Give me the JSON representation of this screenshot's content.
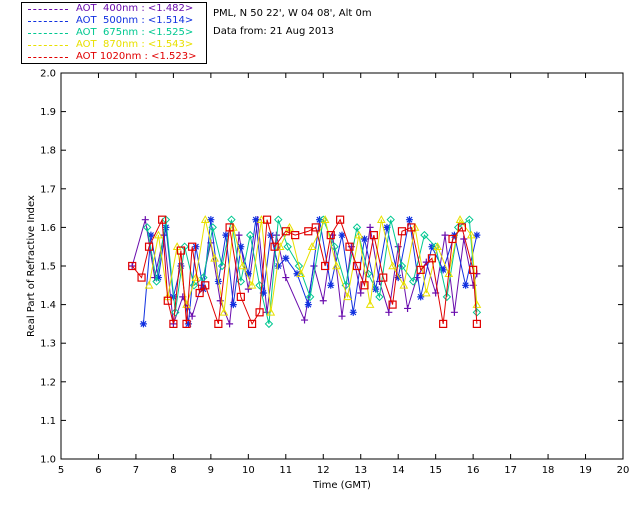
{
  "header": {
    "site": "PML, N 50 22', W 04 08', Alt 0m",
    "date": "Data from: 21 Aug 2013"
  },
  "chart_data": {
    "type": "scatter",
    "title": "",
    "xlabel": "Time (GMT)",
    "ylabel": "Real Part of Refractive Index",
    "xlim": [
      5,
      20
    ],
    "ylim": [
      1.0,
      2.0
    ],
    "xticks": [
      "5",
      "6",
      "7",
      "8",
      "9",
      "10",
      "11",
      "12",
      "13",
      "14",
      "15",
      "16",
      "17",
      "18",
      "19",
      "20"
    ],
    "yticks": [
      "1.0",
      "1.1",
      "1.2",
      "1.3",
      "1.4",
      "1.5",
      "1.6",
      "1.7",
      "1.8",
      "1.9",
      "2.0"
    ],
    "grid": false,
    "legend_position": "top-left",
    "series": [
      {
        "name": "AOT  400nm : <1.482>",
        "color": "#6a0dad",
        "marker": "plus",
        "x": [
          6.9,
          7.25,
          7.5,
          7.75,
          8.0,
          8.25,
          8.5,
          8.75,
          9.0,
          9.25,
          9.5,
          9.75,
          10.0,
          10.25,
          10.5,
          10.75,
          11.0,
          11.5,
          11.75,
          12.0,
          12.25,
          12.5,
          12.75,
          13.0,
          13.25,
          13.5,
          13.75,
          14.0,
          14.25,
          14.5,
          14.75,
          15.0,
          15.25,
          15.5,
          15.75,
          16.0,
          16.1
        ],
        "y": [
          1.5,
          1.62,
          1.47,
          1.58,
          1.35,
          1.42,
          1.37,
          1.45,
          1.56,
          1.41,
          1.35,
          1.58,
          1.44,
          1.62,
          1.38,
          1.58,
          1.47,
          1.36,
          1.5,
          1.41,
          1.58,
          1.37,
          1.55,
          1.43,
          1.6,
          1.46,
          1.38,
          1.55,
          1.39,
          1.47,
          1.51,
          1.43,
          1.58,
          1.38,
          1.57,
          1.45,
          1.48
        ]
      },
      {
        "name": "AOT  500nm : <1.514>",
        "color": "#1030e0",
        "marker": "star",
        "x": [
          7.2,
          7.4,
          7.6,
          7.8,
          8.0,
          8.2,
          8.4,
          8.6,
          8.8,
          9.0,
          9.2,
          9.4,
          9.6,
          9.8,
          10.0,
          10.2,
          10.4,
          10.6,
          10.8,
          11.0,
          11.3,
          11.6,
          11.9,
          12.2,
          12.5,
          12.8,
          13.1,
          13.4,
          13.7,
          14.0,
          14.3,
          14.6,
          14.9,
          15.2,
          15.5,
          15.8,
          16.1
        ],
        "y": [
          1.35,
          1.58,
          1.47,
          1.6,
          1.42,
          1.5,
          1.35,
          1.55,
          1.44,
          1.62,
          1.46,
          1.58,
          1.4,
          1.55,
          1.48,
          1.62,
          1.43,
          1.58,
          1.5,
          1.52,
          1.48,
          1.4,
          1.62,
          1.45,
          1.58,
          1.38,
          1.57,
          1.44,
          1.6,
          1.47,
          1.62,
          1.42,
          1.55,
          1.49,
          1.58,
          1.45,
          1.58
        ]
      },
      {
        "name": "AOT  675nm : <1.525>",
        "color": "#00c890",
        "marker": "diamond",
        "x": [
          7.3,
          7.55,
          7.8,
          8.05,
          8.3,
          8.55,
          8.8,
          9.05,
          9.3,
          9.55,
          9.8,
          10.05,
          10.3,
          10.55,
          10.8,
          11.05,
          11.35,
          11.65,
          12.0,
          12.3,
          12.6,
          12.9,
          13.2,
          13.5,
          13.8,
          14.1,
          14.4,
          14.7,
          15.0,
          15.3,
          15.6,
          15.9,
          16.1
        ],
        "y": [
          1.6,
          1.46,
          1.62,
          1.38,
          1.55,
          1.45,
          1.47,
          1.6,
          1.5,
          1.62,
          1.46,
          1.58,
          1.45,
          1.35,
          1.62,
          1.55,
          1.5,
          1.42,
          1.62,
          1.55,
          1.45,
          1.6,
          1.48,
          1.42,
          1.62,
          1.5,
          1.46,
          1.58,
          1.55,
          1.42,
          1.6,
          1.62,
          1.38
        ]
      },
      {
        "name": "AOT  870nm : <1.543>",
        "color": "#e8e000",
        "marker": "triangle",
        "x": [
          7.35,
          7.6,
          7.85,
          8.1,
          8.35,
          8.6,
          8.85,
          9.1,
          9.35,
          9.6,
          9.85,
          10.1,
          10.35,
          10.6,
          10.85,
          11.1,
          11.4,
          11.7,
          12.05,
          12.35,
          12.65,
          12.95,
          13.25,
          13.55,
          13.85,
          14.15,
          14.45,
          14.75,
          15.05,
          15.35,
          15.65,
          15.95,
          16.1
        ],
        "y": [
          1.45,
          1.58,
          1.42,
          1.55,
          1.4,
          1.47,
          1.62,
          1.52,
          1.38,
          1.6,
          1.5,
          1.45,
          1.62,
          1.38,
          1.55,
          1.6,
          1.48,
          1.55,
          1.62,
          1.5,
          1.42,
          1.58,
          1.4,
          1.62,
          1.5,
          1.45,
          1.6,
          1.43,
          1.55,
          1.48,
          1.62,
          1.58,
          1.4
        ]
      },
      {
        "name": "AOT 1020nm : <1.523>",
        "color": "#e00000",
        "marker": "square",
        "x": [
          6.9,
          7.15,
          7.35,
          7.7,
          7.85,
          8.0,
          8.2,
          8.35,
          8.5,
          8.7,
          8.85,
          9.2,
          9.5,
          9.8,
          10.1,
          10.3,
          10.5,
          10.7,
          11.0,
          11.25,
          11.6,
          11.8,
          12.05,
          12.2,
          12.45,
          12.7,
          12.9,
          13.1,
          13.35,
          13.6,
          13.85,
          14.1,
          14.35,
          14.6,
          14.9,
          15.2,
          15.45,
          15.7,
          16.0,
          16.1
        ],
        "y": [
          1.5,
          1.47,
          1.55,
          1.62,
          1.41,
          1.35,
          1.54,
          1.35,
          1.55,
          1.43,
          1.45,
          1.35,
          1.6,
          1.42,
          1.35,
          1.38,
          1.62,
          1.55,
          1.59,
          1.58,
          1.59,
          1.6,
          1.5,
          1.58,
          1.62,
          1.55,
          1.5,
          1.45,
          1.58,
          1.47,
          1.4,
          1.59,
          1.6,
          1.49,
          1.52,
          1.35,
          1.57,
          1.6,
          1.49,
          1.35
        ]
      }
    ]
  }
}
